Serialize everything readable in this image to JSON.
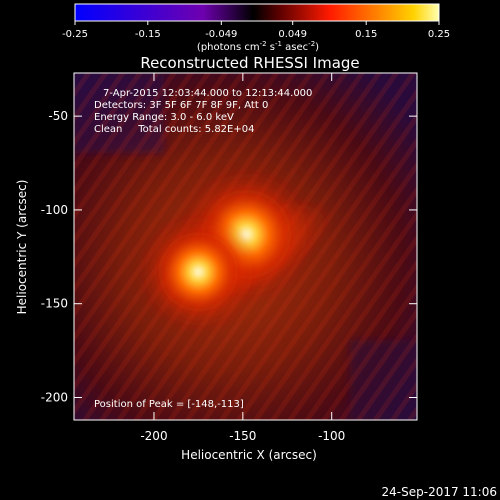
{
  "chart_data": {
    "type": "heatmap",
    "title": "Reconstructed RHESSI Image",
    "colorbar": {
      "ticks": [
        "-0.25",
        "-0.15",
        "-0.049",
        "0.049",
        "0.15",
        "0.25"
      ],
      "range": [
        -0.25,
        0.25
      ],
      "unit_parts": {
        "base": "(photons cm",
        "exp1": "-2",
        "mid1": " s",
        "exp2": "-1",
        "mid2": " asec",
        "exp3": "-2",
        "end": ")"
      }
    },
    "xlabel": "Heliocentric X (arcsec)",
    "ylabel": "Heliocentric Y (arcsec)",
    "xlim": [
      -245,
      -52
    ],
    "ylim": [
      -212,
      -27
    ],
    "x_ticks": [
      {
        "value": -200,
        "label": "-200"
      },
      {
        "value": -150,
        "label": "-150"
      },
      {
        "value": -100,
        "label": "-100"
      }
    ],
    "y_ticks": [
      {
        "value": -50,
        "label": "-50"
      },
      {
        "value": -100,
        "label": "-100"
      },
      {
        "value": -150,
        "label": "-150"
      },
      {
        "value": -200,
        "label": "-200"
      }
    ],
    "annotations": [
      "7-Apr-2015 12:03:44.000 to 12:13:44.000",
      "Detectors: 3F 5F 6F 7F 8F 9F, Att 0",
      "Energy Range: 3.0 - 6.0 keV",
      "Clean     Total counts: 5.82E+04"
    ],
    "peak_label": "Position of Peak = [-148,-113]",
    "peak": {
      "x": -148,
      "y": -113
    },
    "sources": [
      {
        "x": -148,
        "y": -113,
        "amplitude": 0.25
      },
      {
        "x": -175,
        "y": -133,
        "amplitude": 0.2
      }
    ],
    "colormap": "RHESSI red-temperature (blue-purple negatives, black zero, red-yellow-white positives)"
  },
  "footer": {
    "date": "24-Sep-2017 11:06"
  }
}
